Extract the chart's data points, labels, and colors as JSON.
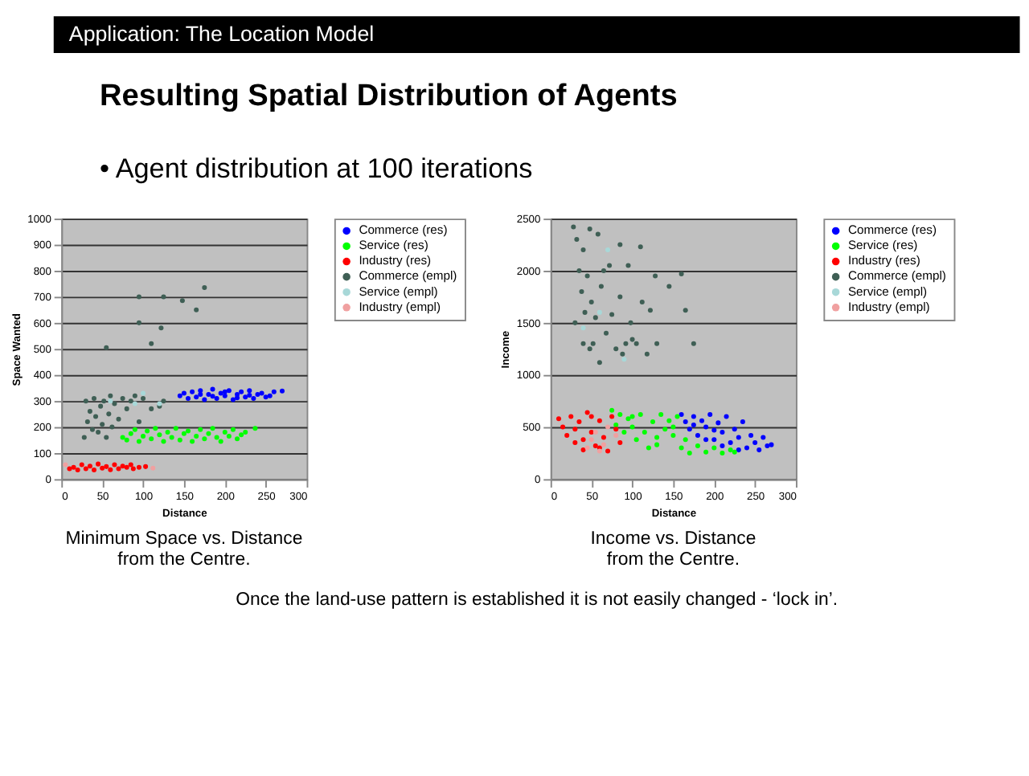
{
  "chart_data": [
    {
      "type": "scatter",
      "title": "Minimum Space vs. Distance\nfrom the Centre.",
      "xlabel": "Distance",
      "ylabel": "Space Wanted",
      "xlim": [
        0,
        300
      ],
      "xticks": [
        0,
        50,
        100,
        150,
        200,
        250,
        300
      ],
      "ylim": [
        0,
        1000
      ],
      "yticks": [
        0,
        100,
        200,
        300,
        400,
        500,
        600,
        700,
        800,
        900,
        1000
      ],
      "grid": "y",
      "legend": "right",
      "annotations": [
        "Application:  The Location Model",
        "Resulting Spatial Distribution of Agents",
        "• Agent distribution at 100 iterations"
      ],
      "series": [
        {
          "name": "Commerce (res)",
          "color": "#0000ff",
          "x": [
            145,
            150,
            155,
            160,
            165,
            170,
            175,
            180,
            185,
            190,
            195,
            200,
            205,
            210,
            215,
            220,
            225,
            230,
            235,
            240,
            245,
            250,
            255,
            260,
            270,
            170,
            200,
            230,
            185,
            215
          ],
          "values": [
            320,
            330,
            310,
            335,
            315,
            340,
            305,
            325,
            345,
            310,
            330,
            320,
            340,
            305,
            325,
            335,
            315,
            340,
            310,
            325,
            330,
            315,
            320,
            335,
            338,
            325,
            335,
            322,
            318,
            312
          ]
        },
        {
          "name": "Service (res)",
          "color": "#00ff00",
          "x": [
            75,
            80,
            85,
            90,
            95,
            100,
            105,
            110,
            115,
            120,
            125,
            130,
            135,
            140,
            145,
            150,
            155,
            160,
            165,
            170,
            175,
            180,
            185,
            190,
            195,
            200,
            205,
            210,
            215,
            220,
            225,
            237
          ],
          "values": [
            160,
            150,
            175,
            190,
            145,
            165,
            185,
            155,
            195,
            170,
            145,
            180,
            160,
            195,
            150,
            175,
            185,
            145,
            165,
            190,
            155,
            175,
            195,
            160,
            145,
            180,
            165,
            190,
            155,
            170,
            180,
            195
          ]
        },
        {
          "name": "Industry (res)",
          "color": "#ff0000",
          "x": [
            10,
            15,
            20,
            25,
            30,
            35,
            40,
            45,
            50,
            55,
            60,
            65,
            70,
            75,
            80,
            85,
            88,
            95,
            103
          ],
          "values": [
            40,
            45,
            35,
            55,
            40,
            50,
            35,
            58,
            42,
            48,
            36,
            55,
            40,
            50,
            45,
            55,
            40,
            45,
            48
          ]
        },
        {
          "name": "Commerce (empl)",
          "color": "#3f5f55",
          "x": [
            28,
            30,
            32,
            35,
            38,
            40,
            42,
            45,
            48,
            50,
            52,
            55,
            58,
            60,
            62,
            65,
            70,
            75,
            80,
            85,
            90,
            95,
            100,
            110,
            120,
            125,
            55,
            95,
            110,
            122,
            125,
            148,
            165,
            175,
            95
          ],
          "values": [
            160,
            300,
            220,
            260,
            190,
            310,
            240,
            180,
            280,
            210,
            300,
            160,
            250,
            320,
            200,
            290,
            230,
            310,
            270,
            300,
            320,
            220,
            310,
            270,
            280,
            300,
            505,
            600,
            520,
            580,
            700,
            685,
            650,
            735,
            700
          ]
        },
        {
          "name": "Service (empl)",
          "color": "#a8d8d8",
          "x": [
            60,
            90,
            120,
            100
          ],
          "values": [
            300,
            290,
            290,
            330
          ]
        },
        {
          "name": "Industry (empl)",
          "color": "#f0a0a0",
          "x": [
            5,
            112
          ],
          "values": [
            55,
            42
          ]
        }
      ]
    },
    {
      "type": "scatter",
      "title": "Income vs. Distance\nfrom the Centre.",
      "xlabel": "Distance",
      "ylabel": "Income",
      "xlim": [
        0,
        300
      ],
      "xticks": [
        0,
        50,
        100,
        150,
        200,
        250,
        300
      ],
      "ylim": [
        0,
        2500
      ],
      "yticks": [
        0,
        500,
        1000,
        1500,
        2000,
        2500
      ],
      "grid": "y",
      "legend": "right",
      "annotations": [
        "Once the land-use pattern is established it is not easily changed - ‘lock in’."
      ],
      "series": [
        {
          "name": "Commerce (res)",
          "color": "#0000ff",
          "x": [
            160,
            165,
            170,
            175,
            180,
            185,
            190,
            195,
            200,
            205,
            210,
            215,
            220,
            225,
            230,
            235,
            240,
            245,
            250,
            255,
            260,
            265,
            270,
            190,
            210,
            230,
            175,
            200
          ],
          "values": [
            620,
            550,
            480,
            600,
            420,
            560,
            500,
            620,
            380,
            540,
            450,
            600,
            350,
            480,
            400,
            550,
            300,
            420,
            350,
            280,
            400,
            320,
            330,
            380,
            320,
            280,
            520,
            470
          ]
        },
        {
          "name": "Service (res)",
          "color": "#00ff00",
          "x": [
            75,
            80,
            85,
            90,
            95,
            100,
            105,
            110,
            115,
            120,
            125,
            130,
            135,
            140,
            145,
            150,
            155,
            160,
            165,
            170,
            180,
            190,
            200,
            210,
            220,
            225,
            130,
            150,
            100
          ],
          "values": [
            660,
            520,
            620,
            450,
            580,
            500,
            380,
            620,
            450,
            300,
            550,
            400,
            620,
            480,
            560,
            420,
            600,
            300,
            380,
            250,
            320,
            260,
            300,
            250,
            280,
            260,
            330,
            500,
            600
          ]
        },
        {
          "name": "Industry (res)",
          "color": "#ff0000",
          "x": [
            10,
            15,
            20,
            25,
            30,
            35,
            40,
            45,
            50,
            55,
            60,
            65,
            70,
            75,
            80,
            85,
            30,
            50,
            40,
            60
          ],
          "values": [
            580,
            500,
            420,
            600,
            350,
            550,
            280,
            640,
            450,
            320,
            560,
            400,
            270,
            600,
            480,
            350,
            480,
            600,
            380,
            300
          ]
        },
        {
          "name": "Commerce (empl)",
          "color": "#3f5f55",
          "x": [
            28,
            32,
            35,
            38,
            40,
            42,
            45,
            48,
            50,
            52,
            55,
            58,
            60,
            62,
            65,
            68,
            72,
            75,
            80,
            85,
            88,
            92,
            95,
            98,
            100,
            105,
            110,
            112,
            118,
            122,
            128,
            130,
            145,
            160,
            165,
            175,
            85,
            30,
            40,
            48
          ],
          "values": [
            2420,
            2300,
            2000,
            1800,
            2200,
            1600,
            1950,
            2400,
            1700,
            1300,
            1550,
            2350,
            1120,
            1850,
            2000,
            1400,
            2050,
            1580,
            1250,
            1750,
            1200,
            1300,
            2050,
            1500,
            1340,
            1300,
            2230,
            1700,
            1200,
            1620,
            1950,
            1300,
            1850,
            1970,
            1620,
            1300,
            2250,
            1500,
            1300,
            1250
          ]
        },
        {
          "name": "Service (empl)",
          "color": "#a8d8d8",
          "x": [
            40,
            60,
            90,
            70
          ],
          "values": [
            1450,
            1600,
            1150,
            2200
          ]
        },
        {
          "name": "Industry (empl)",
          "color": "#f0a0a0",
          "x": [
            45,
            55,
            65,
            70,
            80,
            60,
            50
          ],
          "values": [
            300,
            450,
            330,
            500,
            420,
            270,
            380
          ]
        }
      ]
    }
  ]
}
